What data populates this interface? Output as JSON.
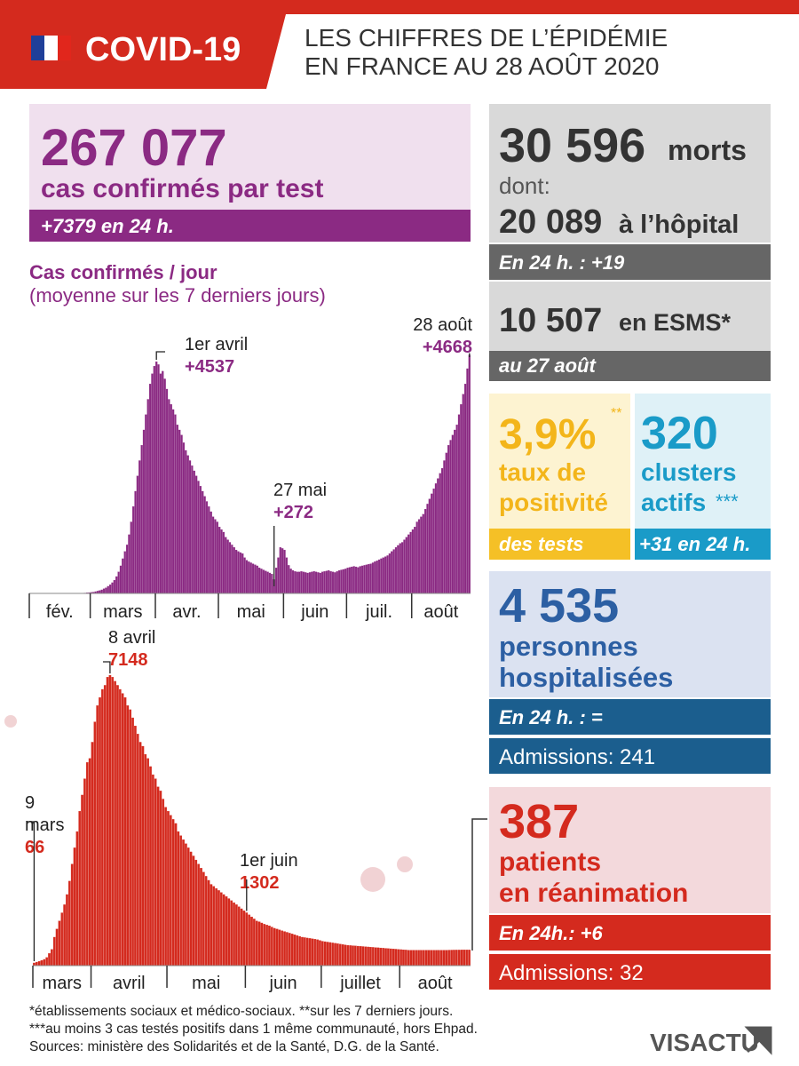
{
  "header": {
    "title": "COVID-19",
    "subtitle_lines": [
      "LES CHIFFRES DE L’ÉPIDÉMIE",
      "EN FRANCE AU 28 AOÛT 2020"
    ]
  },
  "cases": {
    "number": "267 077",
    "label": "cas confirmés par test",
    "change": "+7379 en 24 h."
  },
  "deaths": {
    "number": "30 596",
    "unit": "morts",
    "dont": "dont:",
    "hospital_number": "20 089",
    "hospital_label": "à l’hôpital",
    "change": "En 24 h. : +19",
    "esms_number": "10 507",
    "esms_label": "en ESMS*",
    "esms_date": "au 27 août"
  },
  "positivity": {
    "number": "3,9%",
    "mark": "**",
    "label_lines": [
      "taux de",
      "positivité"
    ],
    "footer": "des tests"
  },
  "clusters": {
    "number": "320",
    "label_lines": [
      "clusters",
      "actifs"
    ],
    "mark": "***",
    "change": "+31 en 24 h."
  },
  "hospitalised": {
    "number": "4 535",
    "label_lines": [
      "personnes",
      "hospitalisées"
    ],
    "change": "En 24 h. : =",
    "admissions": "Admissions: 241"
  },
  "icu": {
    "number": "387",
    "label_lines": [
      "patients",
      "en réanimation"
    ],
    "change": "En 24h.: +6",
    "admissions": "Admissions: 32"
  },
  "footnotes": [
    "*établissements sociaux et médico-sociaux. **sur les 7 derniers jours.",
    "***au moins 3 cas testés positifs dans 1 même communauté, hors Ehpad.",
    "Sources: ministère des Solidarités et de la Santé, D.G. de la Santé."
  ],
  "logo": "VISACTU",
  "chart_data": [
    {
      "type": "bar",
      "title": "Cas confirmés / jour",
      "subtitle": "(moyenne sur les 7 derniers jours)",
      "color": "#8b2a83",
      "xlim": [
        0,
        210
      ],
      "ylim": [
        0,
        4800
      ],
      "xticks": [
        {
          "value": 0,
          "label": "fév."
        },
        {
          "value": 29,
          "label": "mars"
        },
        {
          "value": 60,
          "label": "avr."
        },
        {
          "value": 90,
          "label": "mai"
        },
        {
          "value": 121,
          "label": "juin"
        },
        {
          "value": 151,
          "label": "juil."
        },
        {
          "value": 182,
          "label": "août"
        }
      ],
      "values": [
        0,
        0,
        0,
        0,
        0,
        1,
        1,
        1,
        1,
        1,
        1,
        1,
        1,
        1,
        1,
        1,
        1,
        1,
        1,
        1,
        1,
        1,
        2,
        2,
        3,
        5,
        8,
        12,
        16,
        20,
        25,
        35,
        45,
        55,
        70,
        90,
        110,
        140,
        170,
        210,
        260,
        330,
        420,
        540,
        680,
        820,
        950,
        1150,
        1400,
        1700,
        2000,
        2300,
        2600,
        2900,
        3200,
        3500,
        3800,
        4100,
        4300,
        4450,
        4537,
        4480,
        4300,
        4350,
        4200,
        4000,
        3800,
        3700,
        3600,
        3500,
        3300,
        3200,
        3100,
        2950,
        2800,
        2700,
        2600,
        2500,
        2400,
        2300,
        2200,
        2100,
        2000,
        1900,
        1800,
        1700,
        1600,
        1500,
        1450,
        1400,
        1300,
        1250,
        1200,
        1100,
        1050,
        1000,
        950,
        900,
        850,
        820,
        800,
        780,
        700,
        650,
        620,
        600,
        580,
        560,
        540,
        500,
        480,
        460,
        440,
        420,
        400,
        380,
        272,
        500,
        700,
        900,
        880,
        850,
        700,
        550,
        480,
        450,
        430,
        420,
        420,
        430,
        420,
        410,
        400,
        410,
        420,
        430,
        420,
        410,
        400,
        420,
        430,
        440,
        450,
        430,
        420,
        410,
        430,
        450,
        460,
        470,
        480,
        500,
        510,
        520,
        530,
        520,
        510,
        530,
        540,
        550,
        560,
        570,
        580,
        600,
        620,
        640,
        660,
        680,
        700,
        720,
        740,
        780,
        820,
        860,
        900,
        940,
        980,
        1000,
        1050,
        1100,
        1150,
        1200,
        1250,
        1300,
        1400,
        1450,
        1500,
        1550,
        1650,
        1750,
        1850,
        1950,
        2050,
        2150,
        2250,
        2350,
        2450,
        2600,
        2750,
        2900,
        3000,
        3100,
        3200,
        3300,
        3500,
        3700,
        3900,
        4100,
        4400,
        4668
      ],
      "annotations": [
        {
          "x": 60,
          "date": "1er avril",
          "value_label": "+4537"
        },
        {
          "x": 116,
          "date": "27 mai",
          "value_label": "+272"
        },
        {
          "x": 209,
          "date": "28 août",
          "value_label": "+4668"
        }
      ]
    },
    {
      "type": "bar",
      "color": "#d42a1e",
      "xlim": [
        0,
        173
      ],
      "ylim": [
        0,
        7500
      ],
      "xticks": [
        {
          "value": 0,
          "label": "mars"
        },
        {
          "value": 23,
          "label": "avril"
        },
        {
          "value": 53,
          "label": "mai"
        },
        {
          "value": 84,
          "label": "juin"
        },
        {
          "value": 114,
          "label": "juillet"
        },
        {
          "value": 145,
          "label": "août"
        }
      ],
      "values": [
        66,
        86,
        105,
        129,
        154,
        200,
        300,
        400,
        700,
        900,
        1100,
        1300,
        1500,
        1750,
        2080,
        2500,
        2900,
        3300,
        3800,
        4200,
        4600,
        5000,
        5100,
        5500,
        6000,
        6400,
        6600,
        6800,
        6900,
        7100,
        7148,
        7100,
        7000,
        6900,
        6800,
        6700,
        6600,
        6400,
        6300,
        6100,
        5900,
        5700,
        5500,
        5400,
        5200,
        5100,
        4900,
        4700,
        4600,
        4400,
        4300,
        4100,
        3900,
        3800,
        3700,
        3600,
        3500,
        3300,
        3200,
        3100,
        3000,
        2900,
        2800,
        2700,
        2600,
        2500,
        2400,
        2300,
        2200,
        2100,
        2000,
        1950,
        1900,
        1850,
        1800,
        1750,
        1700,
        1650,
        1600,
        1550,
        1500,
        1450,
        1400,
        1350,
        1302,
        1250,
        1200,
        1150,
        1100,
        1080,
        1050,
        1020,
        1000,
        980,
        950,
        920,
        900,
        880,
        860,
        840,
        820,
        800,
        780,
        760,
        740,
        720,
        700,
        690,
        680,
        670,
        660,
        650,
        640,
        620,
        600,
        590,
        580,
        570,
        560,
        550,
        540,
        530,
        520,
        510,
        500,
        495,
        490,
        485,
        480,
        475,
        470,
        465,
        460,
        455,
        450,
        445,
        440,
        435,
        430,
        425,
        420,
        415,
        410,
        405,
        400,
        395,
        390,
        385,
        380,
        380,
        380,
        380,
        380,
        380,
        380,
        380,
        380,
        380,
        380,
        380,
        380,
        380,
        380,
        380,
        382,
        383,
        384,
        385,
        385,
        386,
        386,
        386,
        387
      ],
      "annotations": [
        {
          "x": 0,
          "date_lines": [
            "9",
            "mars"
          ],
          "value_label": "66"
        },
        {
          "x": 30,
          "date": "8 avril",
          "value_label": "7148"
        },
        {
          "x": 84,
          "date": "1er juin",
          "value_label": "1302"
        }
      ]
    }
  ]
}
